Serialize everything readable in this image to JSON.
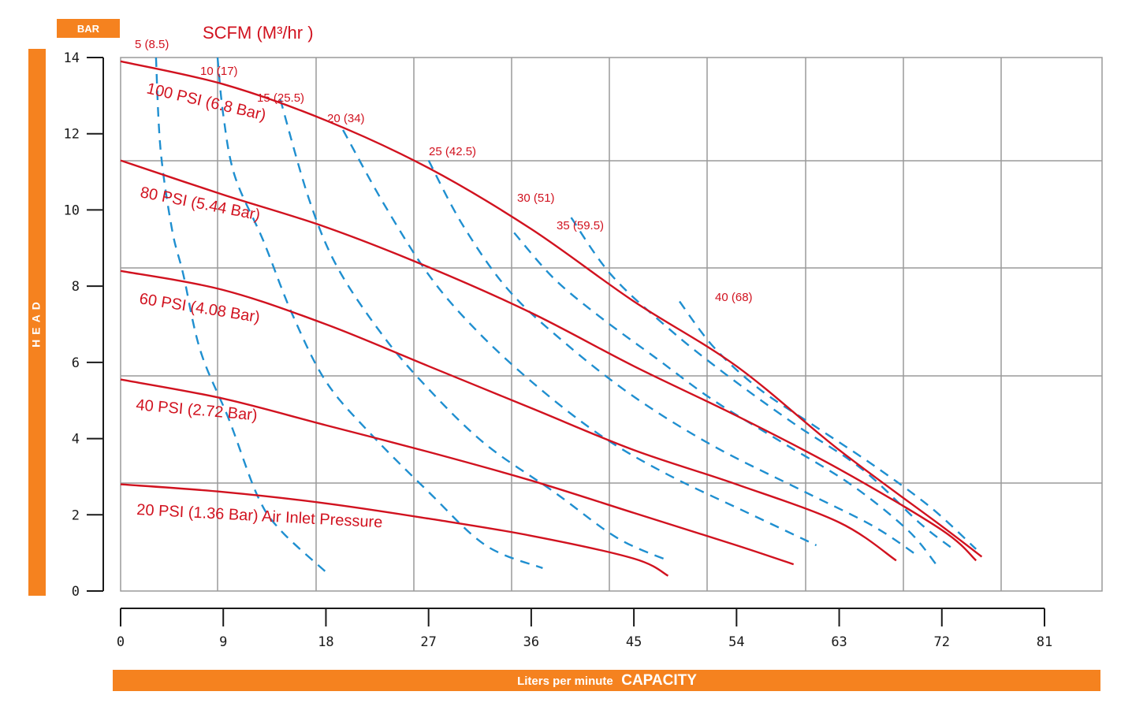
{
  "colors": {
    "orange": "#f5821f",
    "red": "#d1121f",
    "blue": "#1f8fd0",
    "grid": "#9a9a9a",
    "axis": "#1a1a1a"
  },
  "chart_data": {
    "type": "line",
    "title": "SCFM (M³/hr )",
    "xlabel_prefix": "Liters per minute",
    "xlabel_main": "CAPACITY",
    "ylabel": "HEAD",
    "yunit": "BAR",
    "grid": true,
    "xlim": [
      0,
      81
    ],
    "ylim": [
      0,
      14
    ],
    "x_ticks": [
      0,
      9,
      18,
      27,
      36,
      45,
      54,
      63,
      72,
      81
    ],
    "y_ticks": [
      0,
      2,
      4,
      6,
      8,
      10,
      12,
      14
    ],
    "pressure_curves": [
      {
        "name": "100 PSI (6.8 Bar)",
        "points": [
          [
            0,
            13.9
          ],
          [
            9,
            13.3
          ],
          [
            18,
            12.35
          ],
          [
            27,
            11.1
          ],
          [
            36,
            9.5
          ],
          [
            45,
            7.6
          ],
          [
            54,
            5.9
          ],
          [
            63,
            3.7
          ],
          [
            72,
            1.7
          ],
          [
            75.5,
            0.9
          ]
        ]
      },
      {
        "name": "80 PSI (5.44 Bar)",
        "points": [
          [
            0,
            11.3
          ],
          [
            9,
            10.4
          ],
          [
            18,
            9.55
          ],
          [
            27,
            8.5
          ],
          [
            36,
            7.3
          ],
          [
            45,
            5.9
          ],
          [
            54,
            4.6
          ],
          [
            63,
            3.2
          ],
          [
            72,
            1.6
          ],
          [
            75,
            0.8
          ]
        ]
      },
      {
        "name": "60 PSI (4.08 Bar)",
        "points": [
          [
            0,
            8.4
          ],
          [
            9,
            7.9
          ],
          [
            18,
            7.0
          ],
          [
            27,
            5.9
          ],
          [
            36,
            4.8
          ],
          [
            45,
            3.7
          ],
          [
            54,
            2.8
          ],
          [
            63,
            1.8
          ],
          [
            68,
            0.8
          ]
        ]
      },
      {
        "name": "40 PSI (2.72 Bar)",
        "points": [
          [
            0,
            5.55
          ],
          [
            9,
            5.05
          ],
          [
            18,
            4.35
          ],
          [
            27,
            3.65
          ],
          [
            36,
            2.9
          ],
          [
            45,
            2.05
          ],
          [
            54,
            1.2
          ],
          [
            59,
            0.7
          ]
        ]
      },
      {
        "name": "20 PSI (1.36 Bar) Air Inlet Pressure",
        "points": [
          [
            0,
            2.8
          ],
          [
            9,
            2.6
          ],
          [
            18,
            2.3
          ],
          [
            27,
            1.9
          ],
          [
            36,
            1.45
          ],
          [
            45,
            0.85
          ],
          [
            48,
            0.4
          ]
        ]
      }
    ],
    "air_curves": [
      {
        "name": "5 (8.5)",
        "points": [
          [
            3.1,
            14
          ],
          [
            3.5,
            11.6
          ],
          [
            4.5,
            9.5
          ],
          [
            5.5,
            8.3
          ],
          [
            7,
            6.3
          ],
          [
            9.5,
            4.5
          ],
          [
            12,
            2.5
          ],
          [
            14,
            1.6
          ],
          [
            18,
            0.5
          ]
        ]
      },
      {
        "name": "10 (17)",
        "points": [
          [
            8.5,
            14
          ],
          [
            9,
            12.5
          ],
          [
            10,
            10.9
          ],
          [
            12.5,
            9.2
          ],
          [
            15,
            7.3
          ],
          [
            18,
            5.5
          ],
          [
            22,
            4.1
          ],
          [
            27,
            2.6
          ],
          [
            32,
            1.2
          ],
          [
            37,
            0.6
          ]
        ]
      },
      {
        "name": "15 (25.5)",
        "points": [
          [
            14,
            12.9
          ],
          [
            16.5,
            10.3
          ],
          [
            19,
            8.5
          ],
          [
            23,
            6.7
          ],
          [
            27,
            5.3
          ],
          [
            32,
            3.85
          ],
          [
            38,
            2.6
          ],
          [
            43.5,
            1.4
          ],
          [
            48,
            0.8
          ]
        ]
      },
      {
        "name": "20 (34)",
        "points": [
          [
            19.5,
            12.1
          ],
          [
            23,
            10.2
          ],
          [
            27,
            8.3
          ],
          [
            31,
            6.9
          ],
          [
            36,
            5.5
          ],
          [
            42,
            4.1
          ],
          [
            48,
            3.05
          ],
          [
            55,
            2.05
          ],
          [
            61,
            1.2
          ]
        ]
      },
      {
        "name": "25 (42.5)",
        "points": [
          [
            27,
            11.3
          ],
          [
            30,
            9.6
          ],
          [
            34,
            7.9
          ],
          [
            39,
            6.5
          ],
          [
            45,
            5.1
          ],
          [
            52,
            3.8
          ],
          [
            60,
            2.6
          ],
          [
            66,
            1.7
          ],
          [
            70,
            0.9
          ]
        ]
      },
      {
        "name": "30 (51)",
        "points": [
          [
            34.5,
            9.4
          ],
          [
            38,
            8.2
          ],
          [
            42,
            7.2
          ],
          [
            47,
            6.1
          ],
          [
            52,
            5.0
          ],
          [
            58,
            3.9
          ],
          [
            64,
            2.8
          ],
          [
            69,
            1.6
          ],
          [
            71.5,
            0.7
          ]
        ]
      },
      {
        "name": "35 (59.5)",
        "points": [
          [
            39.5,
            9.8
          ],
          [
            43,
            8.3
          ],
          [
            48,
            6.9
          ],
          [
            53,
            5.7
          ],
          [
            59,
            4.4
          ],
          [
            65,
            3.2
          ],
          [
            70,
            1.8
          ],
          [
            73,
            1.1
          ]
        ]
      },
      {
        "name": "40 (68)",
        "points": [
          [
            49,
            7.6
          ],
          [
            52,
            6.4
          ],
          [
            56,
            5.3
          ],
          [
            61,
            4.3
          ],
          [
            66,
            3.3
          ],
          [
            71,
            2.2
          ],
          [
            75,
            1.1
          ]
        ]
      }
    ]
  }
}
